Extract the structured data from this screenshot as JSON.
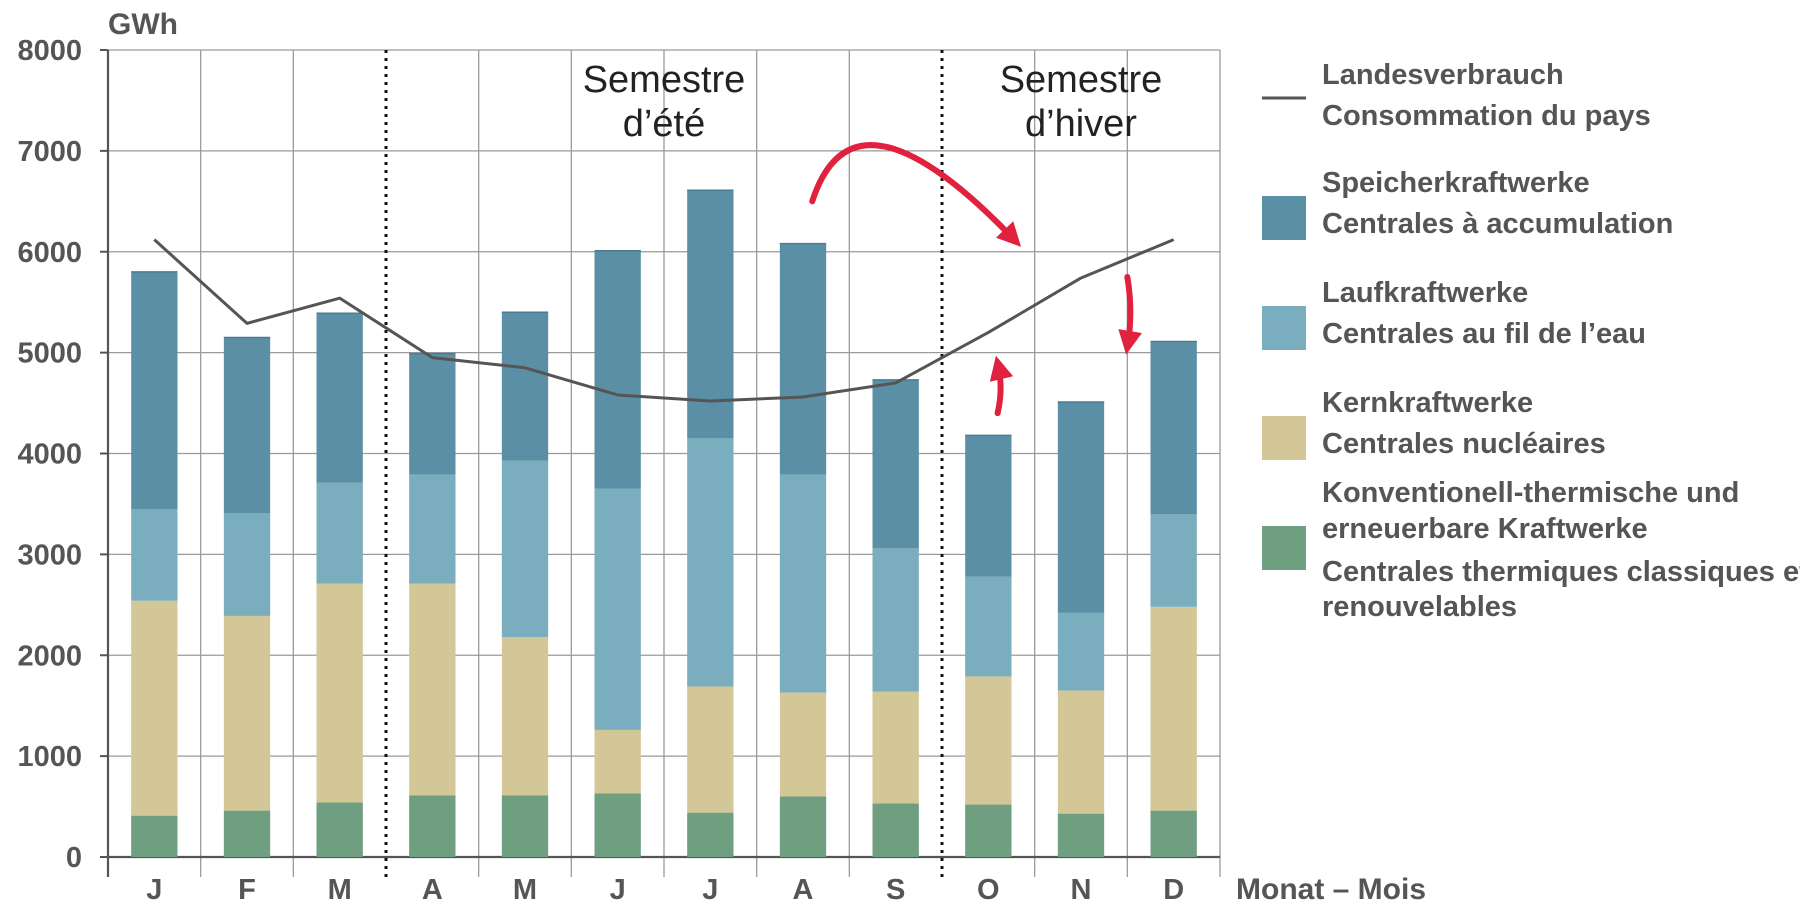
{
  "chart_data": {
    "type": "bar",
    "stacked": true,
    "ylabel": "GWh",
    "xlabel": "Monat – Mois",
    "ylim": [
      0,
      8000
    ],
    "yticks": [
      0,
      1000,
      2000,
      3000,
      4000,
      5000,
      6000,
      7000,
      8000
    ],
    "grid": true,
    "categories": [
      "J",
      "F",
      "M",
      "A",
      "M",
      "J",
      "J",
      "A",
      "S",
      "O",
      "N",
      "D"
    ],
    "series": [
      {
        "name": "Konventionell-thermische und erneuerbare Kraftwerke / Centrales thermiques classiques et renouvelables",
        "color": "#6f9e80",
        "values": [
          410,
          460,
          540,
          610,
          610,
          630,
          440,
          600,
          530,
          520,
          430,
          460
        ]
      },
      {
        "name": "Kernkraftwerke / Centrales nucléaires",
        "color": "#d3c797",
        "values": [
          2130,
          1930,
          2170,
          2100,
          1570,
          630,
          1250,
          1030,
          1110,
          1270,
          1220,
          2020
        ]
      },
      {
        "name": "Laufkraftwerke / Centrales au fil de l’eau",
        "color": "#7aadbd",
        "values": [
          910,
          1020,
          1000,
          1080,
          1750,
          2390,
          2460,
          2160,
          1420,
          990,
          770,
          920
        ]
      },
      {
        "name": "Speicherkraftwerke / Centrales à accumulation",
        "color": "#5b8fa5",
        "values": [
          2350,
          1740,
          1680,
          1200,
          1470,
          2360,
          2460,
          2290,
          1670,
          1400,
          2090,
          1710
        ]
      }
    ],
    "line": {
      "name": "Landesverbrauch / Consommation du pays",
      "color": "#555555",
      "values": [
        6120,
        5290,
        5540,
        4950,
        4850,
        4580,
        4520,
        4560,
        4700,
        5200,
        5740,
        6120
      ]
    },
    "semester_dividers_after": [
      3,
      9
    ],
    "annotations": [
      {
        "kind": "region_label",
        "text_lines": [
          "Semestre",
          "d’été"
        ],
        "anchor_category": 5.5
      },
      {
        "kind": "region_label",
        "text_lines": [
          "Semestre",
          "d’hiver"
        ],
        "anchor_category": 10
      },
      {
        "kind": "arrow",
        "color": "#e0223f",
        "from": [
          7.1,
          6500
        ],
        "to": [
          9.3,
          6100
        ],
        "meaning": "summer storage shifted to winter"
      },
      {
        "kind": "arrow",
        "color": "#e0223f",
        "from": [
          10.5,
          5750
        ],
        "to": [
          10.5,
          5050
        ],
        "meaning": "down"
      },
      {
        "kind": "arrow",
        "color": "#e0223f",
        "from": [
          9.1,
          4400
        ],
        "to": [
          9.1,
          4900
        ],
        "meaning": "up"
      }
    ],
    "legend": {
      "position": "right",
      "entries": [
        {
          "symbol": "line",
          "color": "#555555",
          "lines": [
            "Landesverbrauch",
            "Consommation du pays"
          ]
        },
        {
          "symbol": "box",
          "color": "#5b8fa5",
          "lines": [
            "Speicherkraftwerke",
            "Centrales à accumulation"
          ]
        },
        {
          "symbol": "box",
          "color": "#7aadbd",
          "lines": [
            "Laufkraftwerke",
            "Centrales au fil de l’eau"
          ]
        },
        {
          "symbol": "box",
          "color": "#d3c797",
          "lines": [
            "Kernkraftwerke",
            "Centrales nucléaires"
          ]
        },
        {
          "symbol": "box",
          "color": "#6f9e80",
          "lines": [
            "Konventionell-thermische und",
            "erneuerbare Kraftwerke",
            "Centrales thermiques classiques et",
            "renouvelables"
          ]
        }
      ]
    }
  }
}
